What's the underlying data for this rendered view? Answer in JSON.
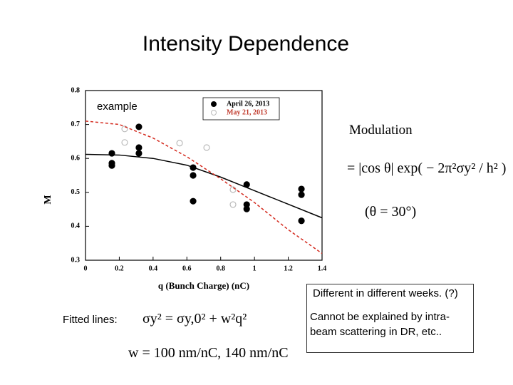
{
  "slide": {
    "title": "Intensity Dependence",
    "note_weeks": "Different in different weeks. (?)",
    "note_ibs": "Cannot be explained by intra-beam scattering in DR, etc..",
    "fitted_label": "Fitted lines:",
    "formula_fit": "σy² = σy,0² + w²q²",
    "formula_w": "w = 100 nm/nC, 140 nm/nC",
    "formula_title": "Modulation",
    "formula_mod": "= |cos θ| exp( − 2π²σy² / h² )",
    "formula_theta": "(θ = 30°)"
  },
  "chart_data": {
    "type": "scatter",
    "annotation": "example",
    "x_label": "q (Bunch Charge) (nC)",
    "y_label": "M",
    "xlim": [
      0,
      1.4
    ],
    "xticks": [
      0,
      0.2,
      0.4,
      0.6,
      0.8,
      1,
      1.2,
      1.4
    ],
    "ylim": [
      0.3,
      0.8
    ],
    "yticks": [
      0.3,
      0.4,
      0.5,
      0.6,
      0.7,
      0.8
    ],
    "legend": "upper right",
    "series": [
      {
        "name": "April 26, 2013",
        "type": "scatter",
        "color": "#000000",
        "filled": true,
        "x": [
          0.156,
          0.156,
          0.156,
          0.316,
          0.316,
          0.316,
          0.637,
          0.637,
          0.637,
          0.954,
          0.954,
          0.954,
          1.278,
          1.278,
          1.278
        ],
        "values": [
          0.615,
          0.586,
          0.579,
          0.693,
          0.632,
          0.615,
          0.573,
          0.55,
          0.474,
          0.523,
          0.464,
          0.451,
          0.51,
          0.493,
          0.416
        ]
      },
      {
        "name": "May 21, 2013",
        "type": "scatter",
        "color": "#c0392b",
        "filled": false,
        "x": [
          0.232,
          0.232,
          0.557,
          0.717,
          0.873,
          0.873
        ],
        "values": [
          0.687,
          0.647,
          0.645,
          0.632,
          0.508,
          0.464
        ]
      },
      {
        "type": "line",
        "color": "#000000",
        "dashed": false,
        "x": [
          0,
          0.2,
          0.4,
          0.6,
          0.8,
          1,
          1.2,
          1.4
        ],
        "values": [
          0.612,
          0.61,
          0.6,
          0.58,
          0.545,
          0.505,
          0.465,
          0.425
        ]
      },
      {
        "type": "line",
        "color": "#d42a1e",
        "dashed": true,
        "x": [
          0,
          0.2,
          0.4,
          0.6,
          0.8,
          1,
          1.2,
          1.4
        ],
        "values": [
          0.71,
          0.7,
          0.66,
          0.605,
          0.54,
          0.47,
          0.39,
          0.32
        ]
      }
    ]
  }
}
